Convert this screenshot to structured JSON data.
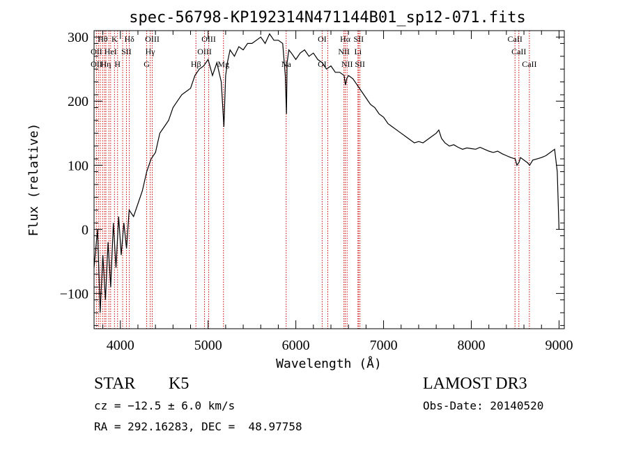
{
  "chart_data": {
    "type": "line",
    "title": "spec-56798-KP192314N471144B01_sp12-071.fits",
    "xlabel": "Wavelength (Å)",
    "ylabel": "Flux (relative)",
    "xlim": [
      3700,
      9060
    ],
    "ylim": [
      -155,
      310
    ],
    "xticks": [
      4000,
      5000,
      6000,
      7000,
      8000,
      9000
    ],
    "xtick_labels": [
      "4000",
      "5000",
      "6000",
      "7000",
      "8000",
      "9000"
    ],
    "yticks": [
      -100,
      0,
      100,
      200,
      300
    ],
    "ytick_labels": [
      "−100",
      "0",
      "100",
      "200",
      "300"
    ],
    "series": [
      {
        "name": "spectrum",
        "x": [
          3700,
          3740,
          3770,
          3800,
          3830,
          3860,
          3890,
          3920,
          3950,
          3980,
          4010,
          4040,
          4070,
          4100,
          4150,
          4200,
          4250,
          4300,
          4350,
          4400,
          4450,
          4500,
          4550,
          4600,
          4650,
          4700,
          4750,
          4800,
          4850,
          4900,
          4950,
          5000,
          5050,
          5100,
          5150,
          5180,
          5200,
          5220,
          5250,
          5300,
          5350,
          5400,
          5450,
          5500,
          5550,
          5600,
          5650,
          5700,
          5750,
          5800,
          5850,
          5880,
          5893,
          5900,
          5920,
          5950,
          6000,
          6050,
          6100,
          6150,
          6200,
          6250,
          6300,
          6350,
          6400,
          6450,
          6500,
          6550,
          6565,
          6580,
          6600,
          6650,
          6700,
          6750,
          6800,
          6850,
          6900,
          6950,
          7000,
          7050,
          7100,
          7150,
          7200,
          7250,
          7300,
          7350,
          7400,
          7450,
          7500,
          7550,
          7600,
          7630,
          7660,
          7700,
          7750,
          7800,
          7850,
          7900,
          7950,
          8000,
          8050,
          8100,
          8150,
          8200,
          8250,
          8300,
          8350,
          8400,
          8450,
          8500,
          8520,
          8545,
          8560,
          8600,
          8640,
          8665,
          8700,
          8750,
          8800,
          8850,
          8900,
          8950,
          8980,
          9000
        ],
        "y": [
          -60,
          0,
          -130,
          -40,
          -110,
          -20,
          -90,
          10,
          -60,
          20,
          -40,
          10,
          -30,
          30,
          20,
          40,
          60,
          90,
          110,
          120,
          150,
          160,
          170,
          190,
          200,
          210,
          215,
          220,
          240,
          250,
          255,
          265,
          240,
          260,
          230,
          160,
          240,
          260,
          280,
          270,
          285,
          280,
          290,
          290,
          295,
          300,
          290,
          305,
          295,
          295,
          290,
          240,
          180,
          260,
          280,
          275,
          265,
          275,
          280,
          270,
          275,
          265,
          260,
          250,
          255,
          245,
          245,
          240,
          225,
          235,
          240,
          235,
          225,
          215,
          205,
          195,
          190,
          180,
          175,
          165,
          160,
          155,
          150,
          145,
          140,
          135,
          137,
          135,
          140,
          145,
          150,
          155,
          142,
          135,
          130,
          132,
          128,
          125,
          127,
          126,
          125,
          128,
          125,
          122,
          120,
          122,
          118,
          115,
          112,
          110,
          100,
          105,
          112,
          108,
          104,
          100,
          108,
          110,
          112,
          115,
          120,
          125,
          90,
          0
        ]
      }
    ],
    "line_markers": {
      "x": [
        3727,
        3750,
        3771,
        3798,
        3820,
        3835,
        3869,
        3889,
        3933,
        3968,
        4026,
        4069,
        4102,
        4300,
        4340,
        4363,
        4861,
        4959,
        5007,
        5175,
        5890,
        6300,
        6364,
        6548,
        6563,
        6584,
        6708,
        6716,
        6731,
        8498,
        8542,
        8662
      ],
      "row1": [
        {
          "text": "Hθ",
          "x": 3799
        },
        {
          "text": "K",
          "x": 3933
        },
        {
          "text": "Hδ",
          "x": 4102
        },
        {
          "text": "OIII",
          "x": 4363
        },
        {
          "text": "OIII",
          "x": 5007
        },
        {
          "text": "OI",
          "x": 6300
        },
        {
          "text": "Hα",
          "x": 6563
        },
        {
          "text": "SII",
          "x": 6716
        },
        {
          "text": "CaII",
          "x": 8498
        }
      ],
      "row2": [
        {
          "text": "OII",
          "x": 3727
        },
        {
          "text": "HeI",
          "x": 3889
        },
        {
          "text": "SII",
          "x": 4069
        },
        {
          "text": "Hγ",
          "x": 4340
        },
        {
          "text": "OIII",
          "x": 4959
        },
        {
          "text": "NII",
          "x": 6548
        },
        {
          "text": "Li",
          "x": 6708
        },
        {
          "text": "CaII",
          "x": 8542
        }
      ],
      "row3": [
        {
          "text": "OII",
          "x": 3727
        },
        {
          "text": "Hη",
          "x": 3835
        },
        {
          "text": "H",
          "x": 3968
        },
        {
          "text": "G",
          "x": 4300
        },
        {
          "text": "Hβ",
          "x": 4861
        },
        {
          "text": "Mg",
          "x": 5175
        },
        {
          "text": "Na",
          "x": 5890
        },
        {
          "text": "OI",
          "x": 6300
        },
        {
          "text": "NII",
          "x": 6584
        },
        {
          "text": "SII",
          "x": 6731
        },
        {
          "text": "CaII",
          "x": 8662
        }
      ]
    }
  },
  "info": {
    "object_class": "STAR",
    "subclass": "K5",
    "cz": "cz = −12.5 ± 6.0 km/s",
    "coords": "RA = 292.16283, DEC =  48.97758",
    "survey": "LAMOST DR3",
    "obs_date": "Obs-Date: 20140520"
  },
  "colors": {
    "line_marker": "#cc0000",
    "spectrum": "#000000",
    "axis": "#000000"
  }
}
